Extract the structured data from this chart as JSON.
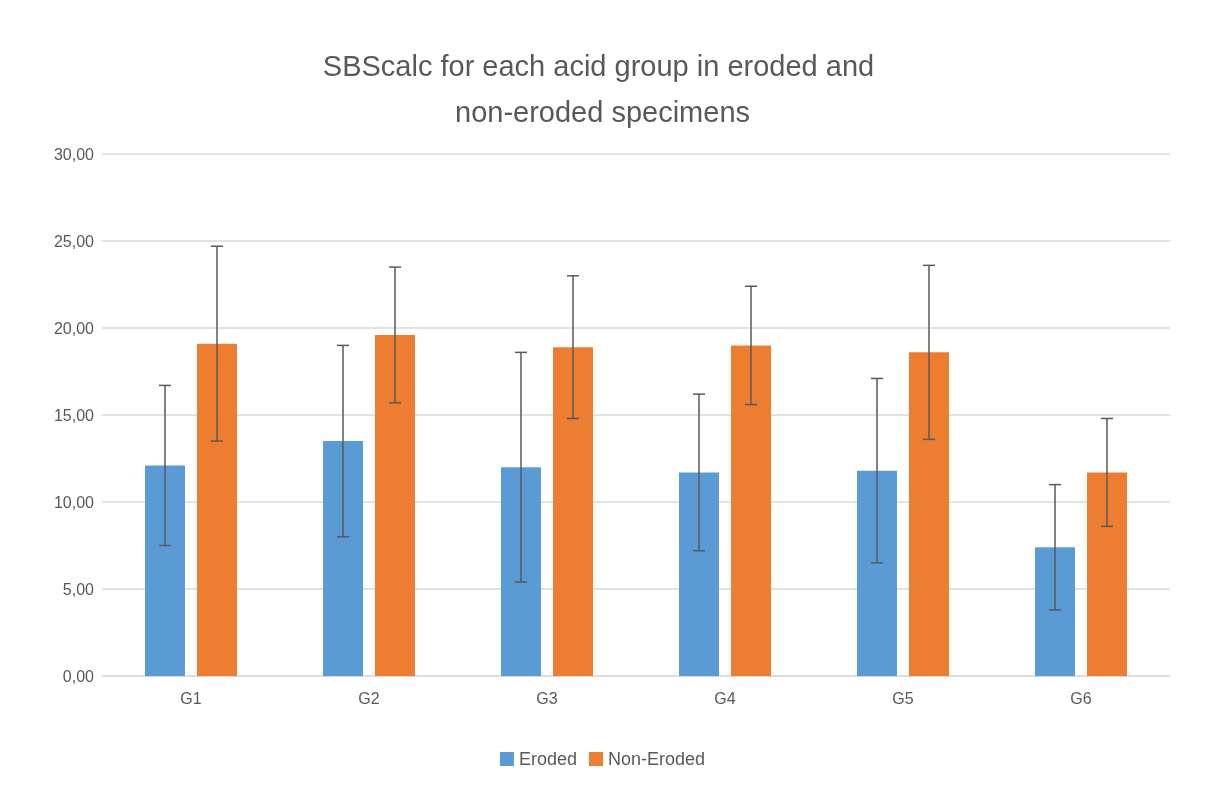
{
  "chart_data": {
    "type": "bar",
    "title": "SBScalc for each acid group in eroded and non-eroded specimens",
    "categories": [
      "G1",
      "G2",
      "G3",
      "G4",
      "G5",
      "G6"
    ],
    "series": [
      {
        "name": "Eroded",
        "color": "#5b9bd5",
        "values": [
          12.1,
          13.5,
          12.0,
          11.7,
          11.8,
          7.4
        ],
        "errors": [
          4.6,
          5.5,
          6.6,
          4.5,
          5.3,
          3.6
        ]
      },
      {
        "name": "Non-Eroded",
        "color": "#ed7d31",
        "values": [
          19.1,
          19.6,
          18.9,
          19.0,
          18.6,
          11.7
        ],
        "errors": [
          5.6,
          3.9,
          4.1,
          3.4,
          5.0,
          3.1
        ]
      }
    ],
    "ylim": [
      0,
      30
    ],
    "yticks": [
      {
        "value": 0,
        "label": "0,00"
      },
      {
        "value": 5,
        "label": "5,00"
      },
      {
        "value": 10,
        "label": "10,00"
      },
      {
        "value": 15,
        "label": "15,00"
      },
      {
        "value": 20,
        "label": "20,00"
      },
      {
        "value": 25,
        "label": "25,00"
      },
      {
        "value": 30,
        "label": "30,00"
      }
    ],
    "grid": "y",
    "legend": "bottom"
  }
}
